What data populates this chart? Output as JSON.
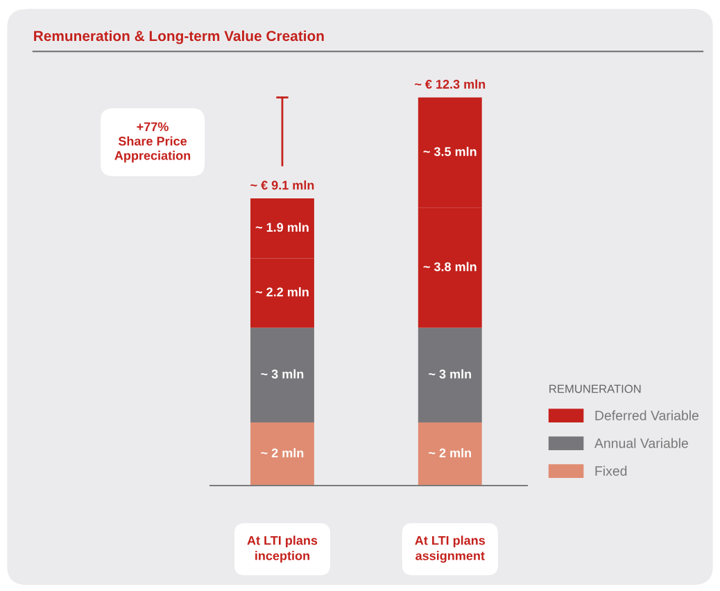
{
  "chart_data": {
    "type": "bar",
    "stacked": true,
    "title": "Remuneration & Long-term Value Creation",
    "categories": [
      "At LTI plans\ninception",
      "At LTI plans\nassignment"
    ],
    "series": [
      {
        "name": "Fixed",
        "color": "#e08c72",
        "values": [
          2,
          2
        ],
        "value_labels": [
          "~ 2 mln",
          "~ 2 mln"
        ]
      },
      {
        "name": "Annual Variable",
        "color": "#77777b",
        "values": [
          3,
          3
        ],
        "value_labels": [
          "~ 3 mln",
          "~ 3 mln"
        ]
      },
      {
        "name": "Deferred Variable",
        "color": "#c4211c",
        "values": [
          2.2,
          3.8
        ],
        "value_labels": [
          "~ 2.2 mln",
          "~ 3.8 mln"
        ]
      },
      {
        "color": "#c4211c",
        "values": [
          1.9,
          3.5
        ],
        "value_labels": [
          "~ 1.9 mln",
          "~ 3.5 mln"
        ]
      }
    ],
    "totals": [
      "~ € 9.1 mln",
      "~ € 12.3 mln"
    ],
    "legend": "right",
    "legend_title": "REMUNERATION",
    "annotations": [
      "+77%\nShare Price\nAppreciation"
    ]
  }
}
